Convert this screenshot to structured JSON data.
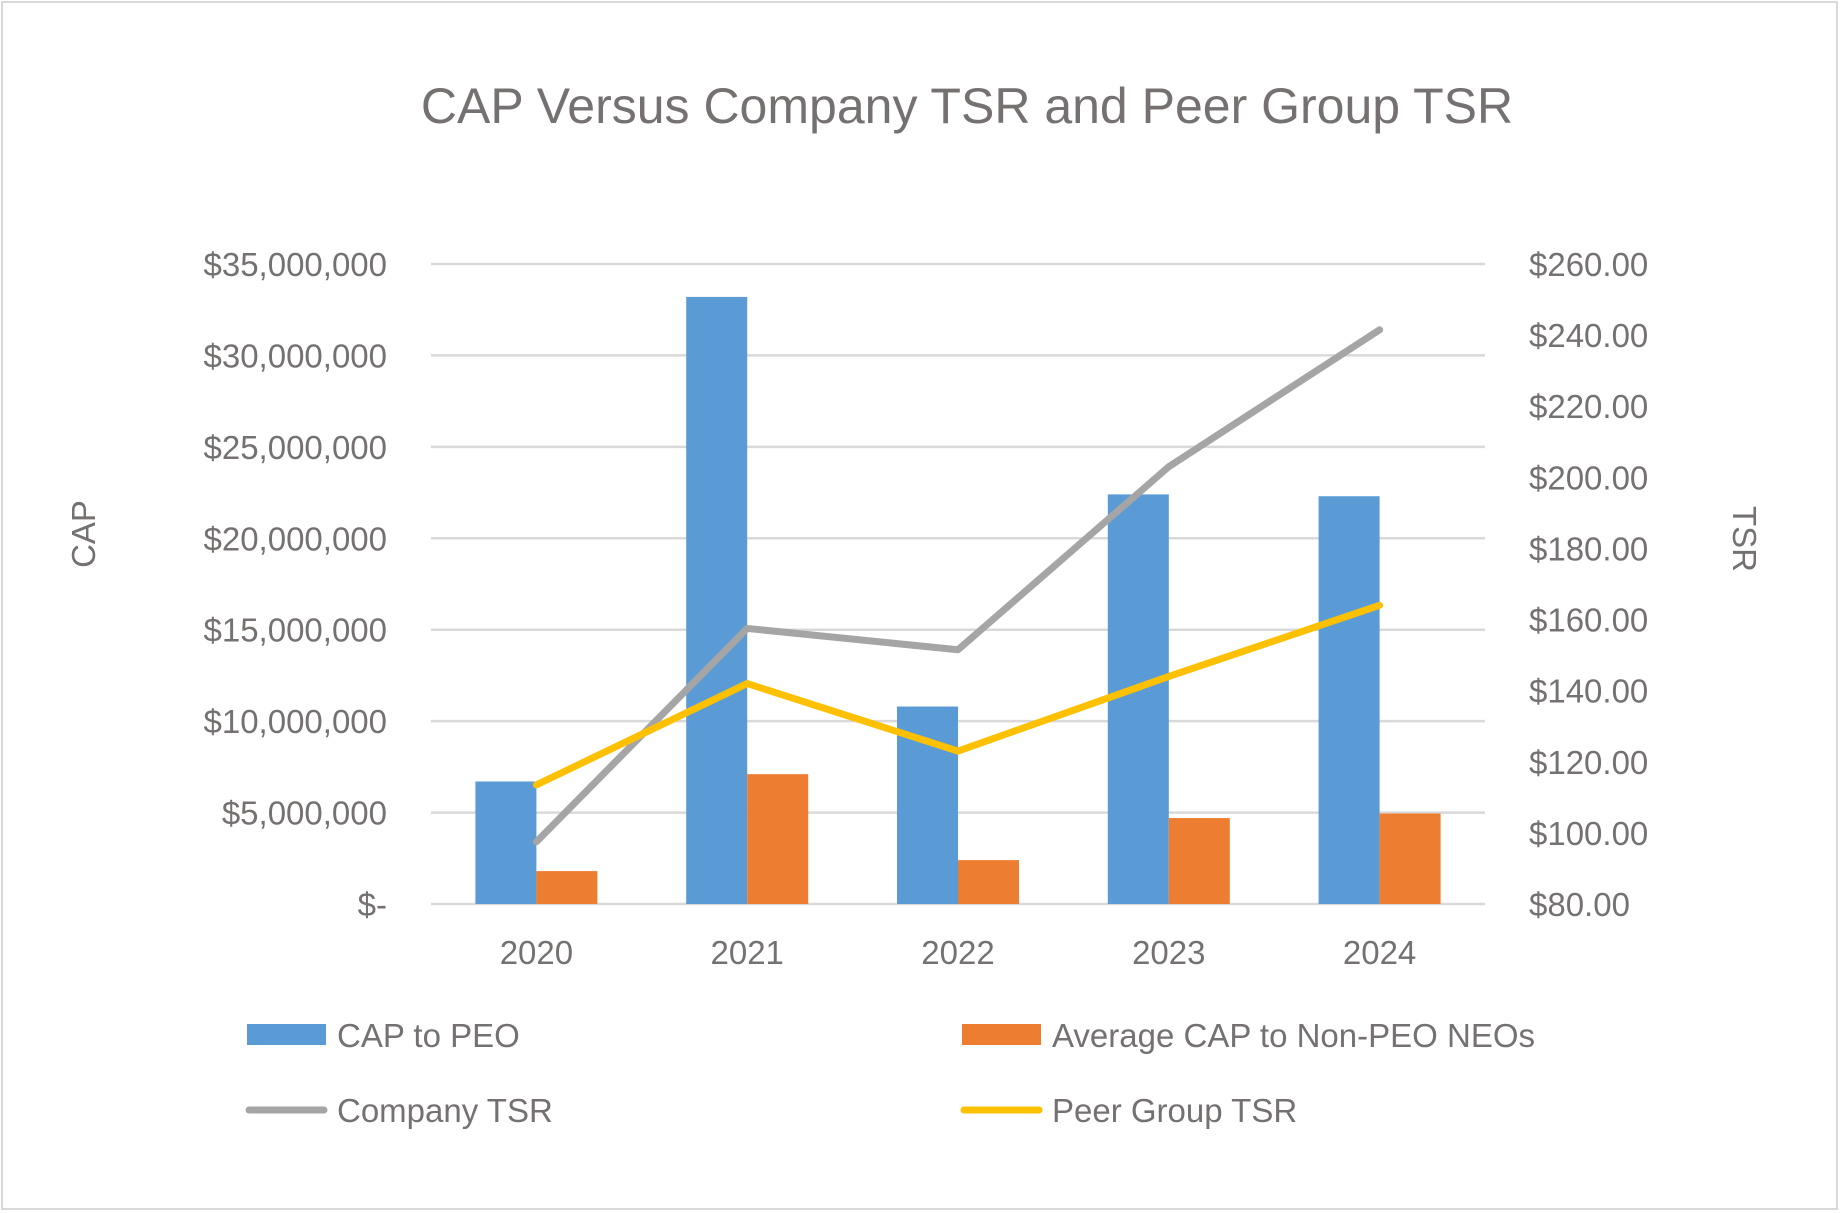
{
  "chart_data": {
    "type": "bar",
    "title": "CAP Versus Company TSR and Peer Group TSR",
    "categories": [
      "2020",
      "2021",
      "2022",
      "2023",
      "2024"
    ],
    "y_left": {
      "label": "CAP",
      "range": [
        0,
        35000000
      ],
      "ticks": [
        0,
        5000000,
        10000000,
        15000000,
        20000000,
        25000000,
        30000000,
        35000000
      ],
      "tick_labels": [
        "$-",
        "$5,000,000",
        "$10,000,000",
        "$15,000,000",
        "$20,000,000",
        "$25,000,000",
        "$30,000,000",
        "$35,000,000"
      ]
    },
    "y_right": {
      "label": "TSR",
      "range": [
        80,
        260
      ],
      "ticks": [
        80,
        100,
        120,
        140,
        160,
        180,
        200,
        220,
        240,
        260
      ],
      "tick_labels": [
        "$80.00",
        "$100.00",
        "$120.00",
        "$140.00",
        "$160.00",
        "$180.00",
        "$200.00",
        "$220.00",
        "$240.00",
        "$260.00"
      ]
    },
    "series": [
      {
        "name": "CAP to PEO",
        "type": "bar",
        "axis": "left",
        "color": "#5b9bd5",
        "values": [
          6700000,
          33200000,
          10800000,
          22400000,
          22300000
        ]
      },
      {
        "name": "Average CAP to Non-PEO NEOs",
        "type": "bar",
        "axis": "left",
        "color": "#ed7d31",
        "values": [
          1800000,
          7100000,
          2400000,
          4700000,
          4950000
        ]
      },
      {
        "name": "Company TSR",
        "type": "line",
        "axis": "right",
        "color": "#a5a5a5",
        "values": [
          97.5,
          157.5,
          151.5,
          203,
          241.5
        ]
      },
      {
        "name": "Peer Group TSR",
        "type": "line",
        "axis": "right",
        "color": "#ffc000",
        "values": [
          113.5,
          142,
          123,
          144,
          164
        ]
      }
    ],
    "grid": true,
    "legend_position": "bottom"
  }
}
